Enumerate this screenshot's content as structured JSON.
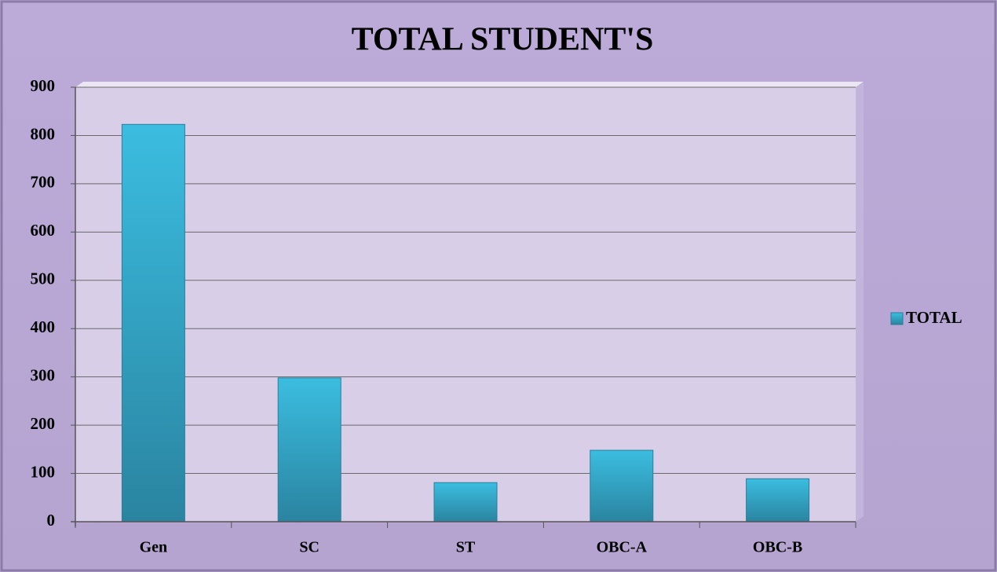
{
  "chart_data": {
    "type": "bar",
    "title": "TOTAL STUDENT'S",
    "categories": [
      "Gen",
      "SC",
      "ST",
      "OBC-A",
      "OBC-B"
    ],
    "series": [
      {
        "name": "TOTAL",
        "color": "#3bbde0",
        "values": [
          823,
          298,
          81,
          148,
          89
        ]
      }
    ],
    "ylim": [
      0,
      900
    ],
    "yticks": [
      0,
      100,
      200,
      300,
      400,
      500,
      600,
      700,
      800,
      900
    ],
    "grid": true,
    "legend": "right"
  }
}
